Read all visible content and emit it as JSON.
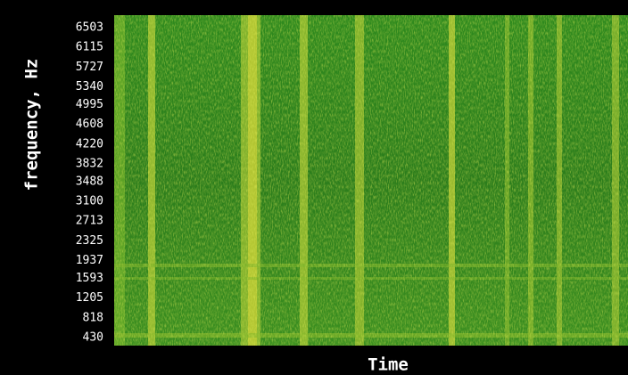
{
  "chart_data": {
    "type": "spectrogram",
    "xlabel": "Time",
    "ylabel": "frequency, Hz",
    "ylim": [
      273,
      6747
    ],
    "yticks": [
      430,
      818,
      1205,
      1593,
      1937,
      2325,
      2713,
      3100,
      3488,
      3832,
      4220,
      4608,
      4995,
      5340,
      5727,
      6115,
      6503
    ],
    "grid": false
  }
}
